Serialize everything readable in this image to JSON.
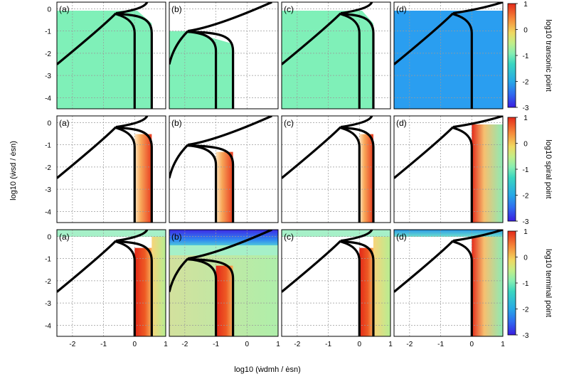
{
  "chart_data": {
    "type": "heatmap",
    "title": "",
    "xlabel": "log10 (ẇdmh / ėsn)",
    "ylabel": "log10 (ẇsd / ėsn)",
    "xlim": [
      -2.5,
      1
    ],
    "ylim": [
      -4.5,
      0.3
    ],
    "x_ticks": [
      -2,
      -1,
      0,
      1
    ],
    "y_ticks": [
      0,
      -1,
      -2,
      -3,
      -4
    ],
    "grid": true,
    "columns": [
      "(a)",
      "(b)",
      "(c)",
      "(d)"
    ],
    "rows": [
      {
        "name": "transonic point",
        "colorbar_label": "log10 transonic point",
        "colorbar_range": [
          -3,
          1
        ],
        "colorbar_ticks": [
          1,
          0,
          -1,
          -2,
          -3
        ]
      },
      {
        "name": "spiral point",
        "colorbar_label": "log10 spiral point",
        "colorbar_range": [
          -3,
          1
        ],
        "colorbar_ticks": [
          1,
          0,
          -1,
          -2,
          -3
        ]
      },
      {
        "name": "terminal point",
        "colorbar_label": "log10 terminal point",
        "colorbar_range": [
          -3,
          1
        ],
        "colorbar_ticks": [
          1,
          0,
          -1,
          -2,
          -3
        ]
      }
    ],
    "curves_by_column": [
      {
        "lower_left_start": [
          -2.5,
          -2.5
        ],
        "cusp": [
          -0.6,
          -0.2
        ],
        "verticals": [
          0,
          0.55
        ],
        "upper_branch_end": [
          0.4,
          0.3
        ]
      },
      {
        "lower_left_start": [
          -2.5,
          -2.5
        ],
        "cusp": [
          -1.9,
          -1.0
        ],
        "verticals": [
          -1.0,
          -0.45
        ],
        "upper_branch_end": [
          0.8,
          0.3
        ]
      },
      {
        "lower_left_start": [
          -2.5,
          -2.5
        ],
        "cusp": [
          -0.6,
          -0.2
        ],
        "verticals": [
          0,
          0.45
        ],
        "upper_branch_end": [
          0.4,
          0.3
        ]
      },
      {
        "lower_left_start": [
          -2.5,
          -2.5
        ],
        "cusp": [
          -0.6,
          -0.2
        ],
        "verticals": [
          0
        ],
        "upper_branch_end": [
          1.0,
          0.1
        ]
      }
    ],
    "fill_levels": [
      [
        "0",
        "0",
        "0",
        "-1.5"
      ],
      [
        "0.5 → 1",
        "0.5 → 1",
        "0.5 → 1",
        "1 → -0.5"
      ],
      [
        "1",
        "1",
        "1",
        "1"
      ]
    ]
  }
}
